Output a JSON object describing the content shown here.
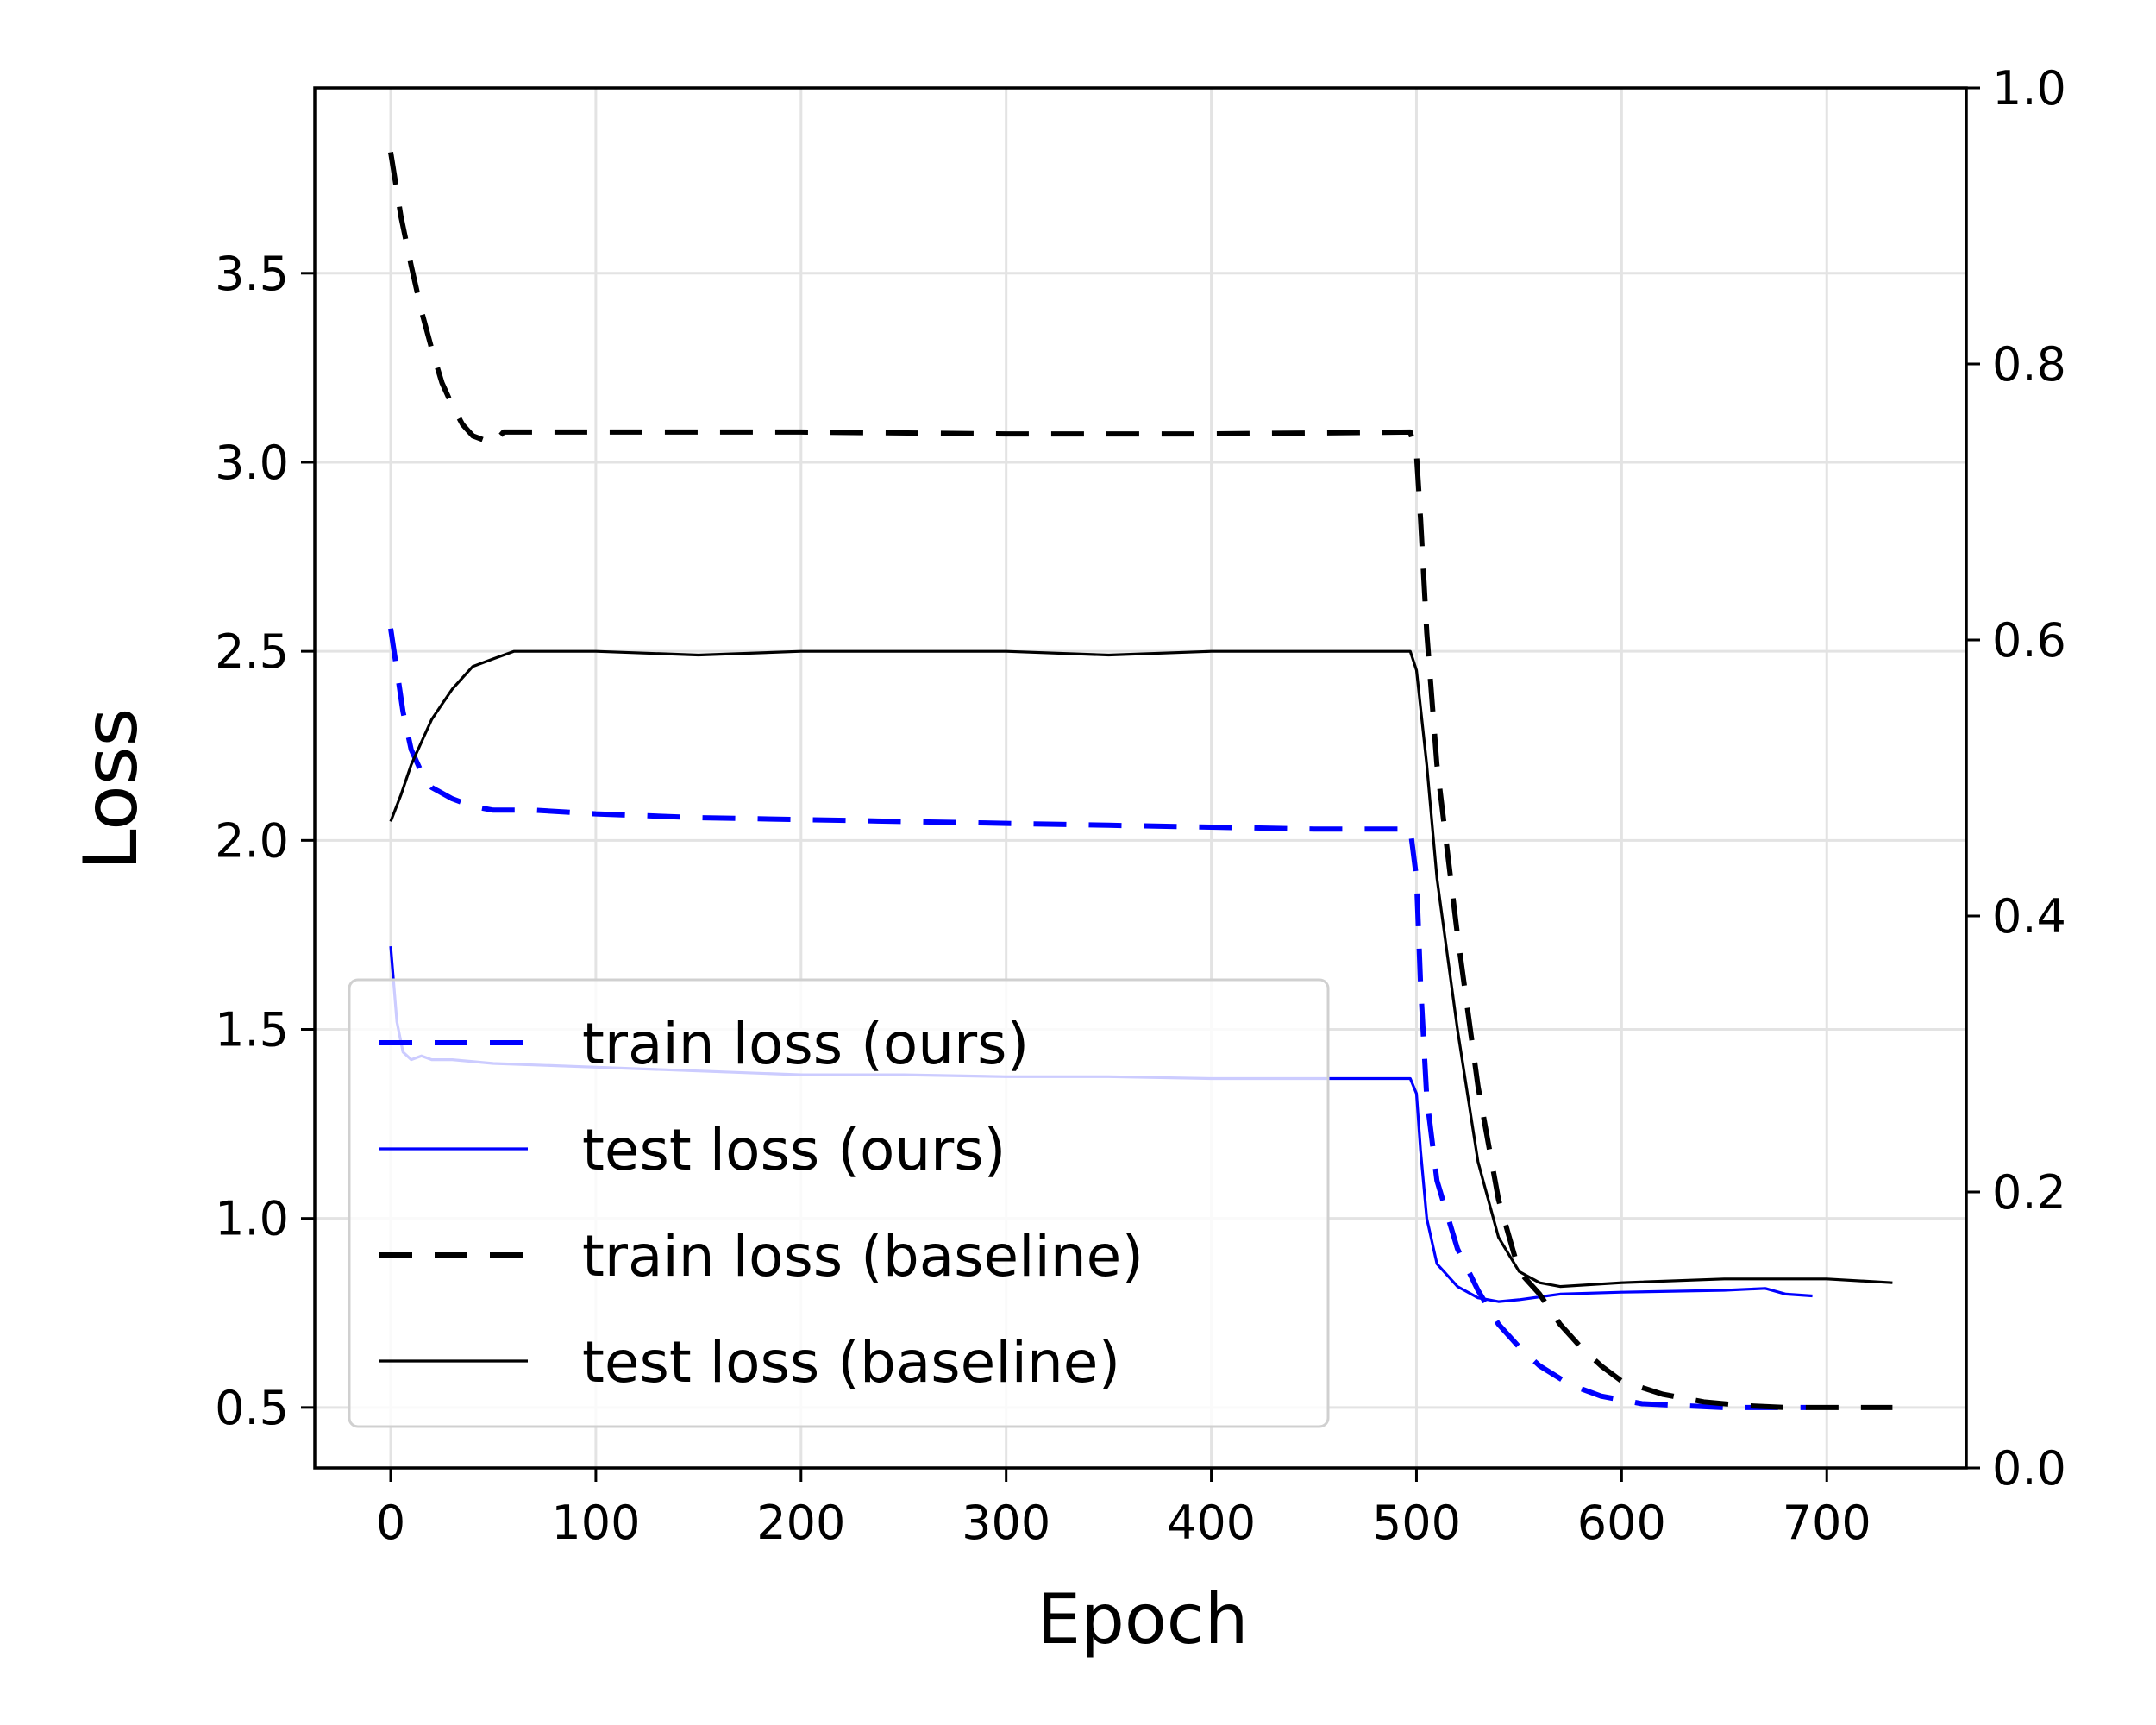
{
  "chart_data": {
    "type": "line",
    "xlabel": "Epoch",
    "ylabel": "Loss",
    "xlim": [
      -37,
      768
    ],
    "ylim": [
      0.34,
      3.99
    ],
    "y2lim": [
      0.0,
      1.0
    ],
    "xticks": [
      "0",
      "100",
      "200",
      "300",
      "400",
      "500",
      "600",
      "700"
    ],
    "yticks": [
      "0.5",
      "1.0",
      "1.5",
      "2.0",
      "2.5",
      "3.0",
      "3.5"
    ],
    "y2ticks": [
      "0.0",
      "0.2",
      "0.4",
      "0.6",
      "0.8",
      "1.0"
    ],
    "grid": true,
    "legend_position": "lower-left",
    "series": [
      {
        "name": "train loss (ours)",
        "color": "#0000ff",
        "style": "dashed",
        "x": [
          0,
          3,
          6,
          10,
          15,
          20,
          30,
          40,
          50,
          70,
          100,
          150,
          200,
          250,
          300,
          350,
          400,
          450,
          497,
          500,
          502,
          505,
          510,
          520,
          530,
          540,
          550,
          560,
          575,
          590,
          610,
          630,
          650,
          665,
          680,
          690
        ],
        "y": [
          2.56,
          2.45,
          2.34,
          2.24,
          2.18,
          2.14,
          2.11,
          2.09,
          2.08,
          2.08,
          2.07,
          2.06,
          2.055,
          2.05,
          2.045,
          2.04,
          2.035,
          2.03,
          2.03,
          1.9,
          1.62,
          1.32,
          1.1,
          0.92,
          0.81,
          0.72,
          0.66,
          0.61,
          0.56,
          0.53,
          0.51,
          0.505,
          0.5,
          0.5,
          0.5,
          0.5
        ]
      },
      {
        "name": "test loss (ours)",
        "color": "#0000ff",
        "style": "solid",
        "x": [
          0,
          3,
          6,
          10,
          15,
          20,
          30,
          50,
          100,
          150,
          200,
          250,
          300,
          350,
          400,
          450,
          497,
          500,
          502,
          505,
          510,
          520,
          530,
          540,
          550,
          570,
          600,
          650,
          670,
          680,
          693
        ],
        "y": [
          1.72,
          1.52,
          1.44,
          1.42,
          1.43,
          1.42,
          1.42,
          1.41,
          1.4,
          1.39,
          1.38,
          1.38,
          1.375,
          1.375,
          1.37,
          1.37,
          1.37,
          1.33,
          1.18,
          1.0,
          0.88,
          0.82,
          0.79,
          0.78,
          0.785,
          0.8,
          0.805,
          0.81,
          0.815,
          0.8,
          0.795
        ]
      },
      {
        "name": "train loss (baseline)",
        "color": "#000000",
        "style": "dashed",
        "x": [
          0,
          5,
          10,
          15,
          20,
          25,
          30,
          35,
          40,
          45,
          50,
          55,
          100,
          200,
          300,
          400,
          497,
          500,
          502,
          505,
          510,
          520,
          530,
          540,
          550,
          560,
          570,
          580,
          590,
          600,
          620,
          640,
          660,
          680,
          700,
          720,
          732
        ],
        "y": [
          3.82,
          3.65,
          3.52,
          3.4,
          3.3,
          3.21,
          3.15,
          3.1,
          3.07,
          3.06,
          3.05,
          3.08,
          3.08,
          3.08,
          3.075,
          3.075,
          3.08,
          3.02,
          2.85,
          2.55,
          2.2,
          1.75,
          1.35,
          1.05,
          0.86,
          0.8,
          0.72,
          0.66,
          0.61,
          0.57,
          0.535,
          0.515,
          0.505,
          0.5,
          0.5,
          0.5,
          0.5
        ]
      },
      {
        "name": "test loss (baseline)",
        "color": "#000000",
        "style": "solid",
        "x": [
          0,
          5,
          10,
          15,
          20,
          25,
          30,
          35,
          40,
          50,
          60,
          80,
          100,
          150,
          200,
          250,
          300,
          350,
          400,
          450,
          497,
          500,
          505,
          510,
          520,
          530,
          540,
          550,
          560,
          570,
          600,
          650,
          700,
          732
        ],
        "y": [
          2.05,
          2.12,
          2.2,
          2.26,
          2.32,
          2.36,
          2.4,
          2.43,
          2.46,
          2.48,
          2.5,
          2.5,
          2.5,
          2.49,
          2.5,
          2.5,
          2.5,
          2.49,
          2.5,
          2.5,
          2.5,
          2.45,
          2.2,
          1.9,
          1.5,
          1.15,
          0.95,
          0.86,
          0.83,
          0.82,
          0.83,
          0.84,
          0.84,
          0.83
        ]
      }
    ]
  }
}
